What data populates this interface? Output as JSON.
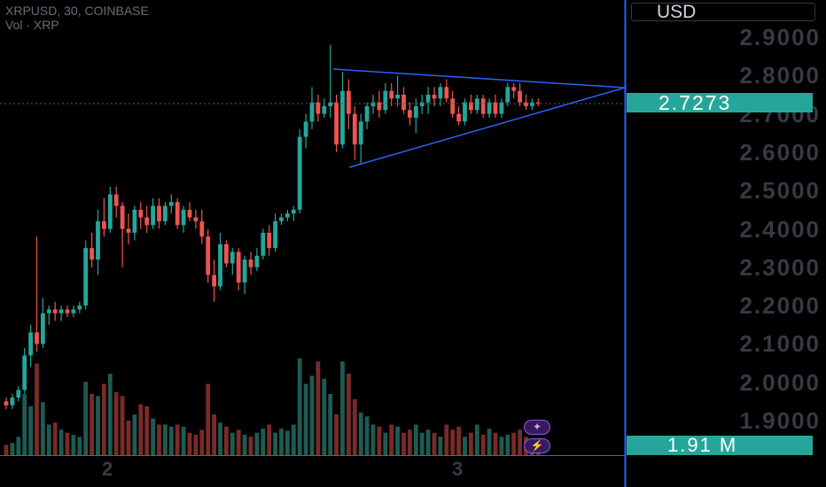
{
  "header": {
    "symbol_line": "XRPUSD, 30, COINBASE",
    "volume_line": "Vol · XRP"
  },
  "currency_label": "USD",
  "last_price_label": "2.7273",
  "volume_label": "1.91 M",
  "colors": {
    "up": "#26a69a",
    "down": "#ef5350",
    "vol_up": "#1f5a53",
    "vol_down": "#7a2a2a",
    "trendline": "#2962ff",
    "price_tag": "#26a69a",
    "grid_text": "#363a45"
  },
  "icons": [
    "star-flash-icon",
    "lightning-flash-icon"
  ],
  "chart_data": {
    "type": "candlestick",
    "title": "XRPUSD, 30, COINBASE",
    "ylabel": "USD",
    "ylim": [
      1.86,
      2.95
    ],
    "y_ticks": [
      "2.9000",
      "2.8000",
      "2.7000",
      "2.6000",
      "2.5000",
      "2.4000",
      "2.3000",
      "2.2000",
      "2.1000",
      "2.0000",
      "1.9000"
    ],
    "x_ticks": [
      "2",
      "3"
    ],
    "last_price": 2.7273,
    "last_volume": "1.91 M",
    "candles": [
      [
        1.95,
        1.96,
        1.93,
        1.94
      ],
      [
        1.94,
        1.97,
        1.93,
        1.96
      ],
      [
        1.96,
        1.99,
        1.95,
        1.98
      ],
      [
        1.98,
        2.09,
        1.97,
        2.07
      ],
      [
        2.07,
        2.15,
        2.04,
        2.13
      ],
      [
        2.13,
        2.38,
        2.08,
        2.1
      ],
      [
        2.1,
        2.22,
        2.09,
        2.18
      ],
      [
        2.18,
        2.2,
        2.15,
        2.19
      ],
      [
        2.19,
        2.21,
        2.16,
        2.18
      ],
      [
        2.18,
        2.2,
        2.16,
        2.19
      ],
      [
        2.19,
        2.2,
        2.17,
        2.18
      ],
      [
        2.18,
        2.2,
        2.17,
        2.19
      ],
      [
        2.19,
        2.21,
        2.18,
        2.2
      ],
      [
        2.2,
        2.37,
        2.19,
        2.35
      ],
      [
        2.35,
        2.39,
        2.3,
        2.32
      ],
      [
        2.32,
        2.45,
        2.28,
        2.42
      ],
      [
        2.42,
        2.48,
        2.38,
        2.4
      ],
      [
        2.4,
        2.51,
        2.39,
        2.49
      ],
      [
        2.49,
        2.51,
        2.43,
        2.46
      ],
      [
        2.46,
        2.47,
        2.3,
        2.4
      ],
      [
        2.4,
        2.44,
        2.36,
        2.39
      ],
      [
        2.39,
        2.46,
        2.37,
        2.45
      ],
      [
        2.45,
        2.47,
        2.4,
        2.43
      ],
      [
        2.43,
        2.46,
        2.39,
        2.41
      ],
      [
        2.41,
        2.48,
        2.4,
        2.46
      ],
      [
        2.46,
        2.48,
        2.4,
        2.42
      ],
      [
        2.42,
        2.47,
        2.41,
        2.46
      ],
      [
        2.46,
        2.49,
        2.44,
        2.47
      ],
      [
        2.47,
        2.48,
        2.4,
        2.41
      ],
      [
        2.41,
        2.46,
        2.39,
        2.45
      ],
      [
        2.45,
        2.47,
        2.42,
        2.43
      ],
      [
        2.43,
        2.45,
        2.4,
        2.42
      ],
      [
        2.42,
        2.45,
        2.36,
        2.38
      ],
      [
        2.38,
        2.4,
        2.26,
        2.28
      ],
      [
        2.28,
        2.32,
        2.21,
        2.25
      ],
      [
        2.25,
        2.39,
        2.24,
        2.36
      ],
      [
        2.36,
        2.37,
        2.3,
        2.31
      ],
      [
        2.31,
        2.35,
        2.28,
        2.34
      ],
      [
        2.34,
        2.35,
        2.24,
        2.26
      ],
      [
        2.26,
        2.33,
        2.23,
        2.32
      ],
      [
        2.32,
        2.34,
        2.28,
        2.3
      ],
      [
        2.3,
        2.35,
        2.29,
        2.33
      ],
      [
        2.33,
        2.4,
        2.32,
        2.39
      ],
      [
        2.39,
        2.41,
        2.33,
        2.35
      ],
      [
        2.35,
        2.44,
        2.34,
        2.42
      ],
      [
        2.42,
        2.44,
        2.41,
        2.43
      ],
      [
        2.43,
        2.45,
        2.42,
        2.44
      ],
      [
        2.44,
        2.46,
        2.42,
        2.45
      ],
      [
        2.45,
        2.66,
        2.44,
        2.64
      ],
      [
        2.64,
        2.7,
        2.61,
        2.68
      ],
      [
        2.68,
        2.77,
        2.66,
        2.73
      ],
      [
        2.73,
        2.75,
        2.68,
        2.7
      ],
      [
        2.7,
        2.74,
        2.69,
        2.72
      ],
      [
        2.72,
        2.88,
        2.69,
        2.73
      ],
      [
        2.73,
        2.75,
        2.6,
        2.62
      ],
      [
        2.62,
        2.81,
        2.61,
        2.76
      ],
      [
        2.76,
        2.79,
        2.66,
        2.7
      ],
      [
        2.7,
        2.72,
        2.58,
        2.62
      ],
      [
        2.62,
        2.7,
        2.57,
        2.68
      ],
      [
        2.68,
        2.73,
        2.66,
        2.72
      ],
      [
        2.72,
        2.75,
        2.7,
        2.73
      ],
      [
        2.73,
        2.76,
        2.69,
        2.71
      ],
      [
        2.71,
        2.78,
        2.7,
        2.76
      ],
      [
        2.76,
        2.78,
        2.72,
        2.74
      ],
      [
        2.74,
        2.8,
        2.72,
        2.75
      ],
      [
        2.75,
        2.77,
        2.7,
        2.71
      ],
      [
        2.71,
        2.73,
        2.67,
        2.69
      ],
      [
        2.69,
        2.74,
        2.65,
        2.72
      ],
      [
        2.72,
        2.75,
        2.7,
        2.73
      ],
      [
        2.73,
        2.77,
        2.7,
        2.75
      ],
      [
        2.75,
        2.77,
        2.72,
        2.74
      ],
      [
        2.74,
        2.78,
        2.72,
        2.77
      ],
      [
        2.77,
        2.79,
        2.73,
        2.74
      ],
      [
        2.74,
        2.76,
        2.69,
        2.7
      ],
      [
        2.7,
        2.72,
        2.67,
        2.68
      ],
      [
        2.68,
        2.74,
        2.67,
        2.73
      ],
      [
        2.73,
        2.75,
        2.7,
        2.71
      ],
      [
        2.71,
        2.75,
        2.7,
        2.74
      ],
      [
        2.74,
        2.75,
        2.69,
        2.7
      ],
      [
        2.7,
        2.74,
        2.69,
        2.73
      ],
      [
        2.73,
        2.75,
        2.69,
        2.7
      ],
      [
        2.7,
        2.74,
        2.69,
        2.73
      ],
      [
        2.73,
        2.78,
        2.72,
        2.77
      ],
      [
        2.77,
        2.78,
        2.74,
        2.76
      ],
      [
        2.76,
        2.78,
        2.72,
        2.73
      ],
      [
        2.73,
        2.75,
        2.71,
        2.72
      ],
      [
        2.72,
        2.74,
        2.71,
        2.73
      ],
      [
        2.73,
        2.74,
        2.72,
        2.7273
      ]
    ],
    "volume_ratio": [
      0.1,
      0.12,
      0.18,
      0.6,
      0.48,
      0.9,
      0.52,
      0.3,
      0.32,
      0.25,
      0.22,
      0.2,
      0.18,
      0.72,
      0.6,
      0.58,
      0.7,
      0.8,
      0.62,
      0.58,
      0.34,
      0.4,
      0.5,
      0.48,
      0.36,
      0.3,
      0.3,
      0.28,
      0.3,
      0.28,
      0.22,
      0.2,
      0.25,
      0.7,
      0.4,
      0.32,
      0.28,
      0.22,
      0.25,
      0.2,
      0.18,
      0.22,
      0.26,
      0.3,
      0.22,
      0.26,
      0.24,
      0.3,
      0.95,
      0.7,
      0.78,
      0.92,
      0.75,
      0.6,
      0.4,
      0.92,
      0.8,
      0.55,
      0.42,
      0.38,
      0.3,
      0.28,
      0.22,
      0.3,
      0.28,
      0.22,
      0.25,
      0.3,
      0.22,
      0.25,
      0.22,
      0.18,
      0.3,
      0.25,
      0.28,
      0.18,
      0.22,
      0.3,
      0.2,
      0.26,
      0.22,
      0.18,
      0.2,
      0.22,
      0.25,
      0.18,
      0.15,
      0.08
    ],
    "triangle": {
      "upper": {
        "start_index": 53,
        "end_index": 104,
        "start_price": 2.81,
        "end_price": 2.77
      },
      "lower": {
        "start_index": 55,
        "end_index": 104,
        "start_price": 2.56,
        "end_price": 2.77
      }
    }
  }
}
